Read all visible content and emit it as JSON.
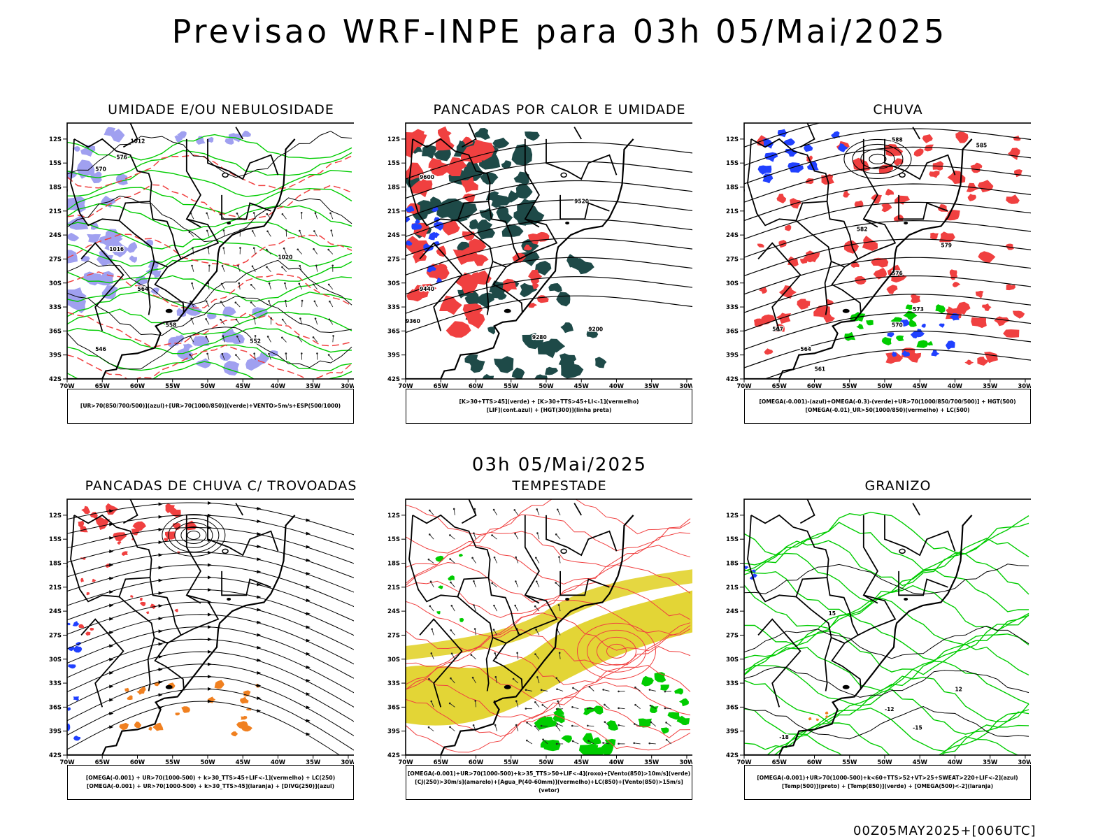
{
  "header": {
    "title": "Previsao WRF-INPE  para 03h 05/Mai/2025"
  },
  "middle": {
    "title": "03h 05/Mai/2025"
  },
  "footer": {
    "run_label": "00Z05MAY2025+[006UTC]"
  },
  "axes": {
    "lat_labels": [
      "12S",
      "15S",
      "18S",
      "21S",
      "24S",
      "27S",
      "30S",
      "33S",
      "36S",
      "39S",
      "42S"
    ],
    "lon_labels": [
      "70W",
      "65W",
      "60W",
      "55W",
      "50W",
      "45W",
      "40W",
      "35W",
      "30W"
    ]
  },
  "colors": {
    "red": "#f04040",
    "green": "#00cc00",
    "blue": "#2040ff",
    "lavender": "#a0a0f0",
    "darkteal": "#1e4a48",
    "yellow": "#e0d020",
    "orange": "#f08020"
  },
  "panels": [
    {
      "id": "p1",
      "title": "UMIDADE E/OU NEBULOSIDADE",
      "legend": [
        "[UR>70(850/700/500)](azul)+[UR>70(1000/850)](verde)+VENTO>5m/s+ESP(500/1000)"
      ],
      "contour_labels": [
        "1012",
        "1016",
        "1020",
        "576",
        "570",
        "564",
        "558",
        "552",
        "546"
      ]
    },
    {
      "id": "p2",
      "title": "PANCADAS POR CALOR E UMIDADE",
      "legend": [
        "[K>30+TTS>45](verde)  +  [K>30+TTS>45+LI<-1](vermelho)",
        "[LIF](cont.azul)  +  [HGT(300)](linha preta)"
      ],
      "contour_labels": [
        "9600",
        "9520",
        "9440",
        "9360",
        "9280",
        "9200"
      ]
    },
    {
      "id": "p3",
      "title": "CHUVA",
      "legend": [
        "[OMEGA(-0.001)-(azul)+OMEGA(-0.3)-(verde)+UR>70(1000/850/700/500)]  +  HGT(500)",
        "[OMEGA(-0.01)_UR>50(1000/850)(vermelho)  +  LC(500)"
      ],
      "contour_labels": [
        "588",
        "585",
        "582",
        "579",
        "576",
        "573",
        "570",
        "567",
        "564",
        "561"
      ]
    },
    {
      "id": "p4",
      "title": "PANCADAS DE CHUVA C/ TROVOADAS",
      "legend": [
        "[OMEGA(-0.001)  +  UR>70(1000-500)  +  k>30_TTS>45+LIF<-1](vermelho)  +  LC(250)",
        "[OMEGA(-0.001)  +  UR>70(1000-500)  +  k>30_TTS>45](laranja)  +  [DIVG(250)](azul)"
      ],
      "contour_labels": []
    },
    {
      "id": "p5",
      "title": "TEMPESTADE",
      "legend": [
        "[OMEGA(-0.001)+UR>70(1000-500)+k>35_TTS>50+LIF<-4](roxo)+[Vento(850)>10m/s](verde)",
        "[CJ(250)>30m/s](amarelo)+[Agua_P(40-60mm)](vermelho)+LC(850)+[Vento(850)>15m/s](vetor)"
      ],
      "contour_labels": []
    },
    {
      "id": "p6",
      "title": "GRANIZO",
      "legend": [
        "[OMEGA(-0.001)+UR>70(1000-500)+k<60+TTS>52+VT>25+SWEAT>220+LIF<-2](azul)",
        "[Temp(500)](preto)  +  [Temp(850)](verde)  +  [OMEGA(500)<-2](laranja)"
      ],
      "contour_labels": [
        "-12",
        "-15",
        "-18",
        "15",
        "12"
      ]
    }
  ]
}
